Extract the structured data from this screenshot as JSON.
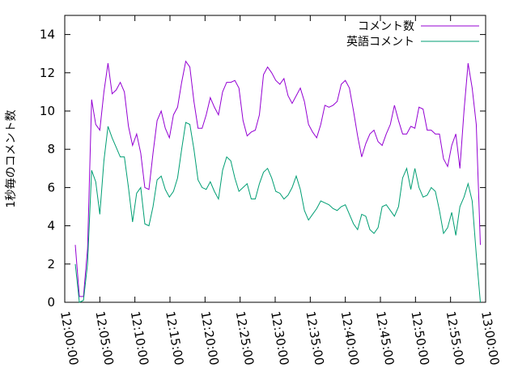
{
  "chart_data": {
    "type": "line",
    "ylabel": "1秒毎のコメント数",
    "x": [
      "12:01:30",
      "12:02:05",
      "12:02:40",
      "12:03:15",
      "12:03:50",
      "12:04:25",
      "12:05:00",
      "12:05:35",
      "12:06:10",
      "12:06:45",
      "12:07:20",
      "12:07:55",
      "12:08:30",
      "12:09:05",
      "12:09:40",
      "12:10:15",
      "12:10:50",
      "12:11:25",
      "12:12:00",
      "12:12:35",
      "12:13:10",
      "12:13:45",
      "12:14:20",
      "12:14:55",
      "12:15:30",
      "12:16:05",
      "12:16:40",
      "12:17:15",
      "12:17:50",
      "12:18:25",
      "12:19:00",
      "12:19:35",
      "12:20:10",
      "12:20:45",
      "12:21:20",
      "12:21:55",
      "12:22:30",
      "12:23:05",
      "12:23:40",
      "12:24:15",
      "12:24:50",
      "12:25:25",
      "12:26:00",
      "12:26:35",
      "12:27:10",
      "12:27:45",
      "12:28:20",
      "12:28:55",
      "12:29:30",
      "12:30:05",
      "12:30:40",
      "12:31:15",
      "12:31:50",
      "12:32:25",
      "12:33:00",
      "12:33:35",
      "12:34:10",
      "12:34:45",
      "12:35:20",
      "12:35:55",
      "12:36:30",
      "12:37:05",
      "12:37:40",
      "12:38:15",
      "12:38:50",
      "12:39:25",
      "12:40:00",
      "12:40:35",
      "12:41:10",
      "12:41:45",
      "12:42:20",
      "12:42:55",
      "12:43:30",
      "12:44:05",
      "12:44:40",
      "12:45:15",
      "12:45:50",
      "12:46:25",
      "12:47:00",
      "12:47:35",
      "12:48:10",
      "12:48:45",
      "12:49:20",
      "12:49:55",
      "12:50:30",
      "12:51:05",
      "12:51:40",
      "12:52:15",
      "12:52:50",
      "12:53:25",
      "12:54:00",
      "12:54:35",
      "12:55:10",
      "12:55:45",
      "12:56:20",
      "12:56:55",
      "12:57:30",
      "12:58:05",
      "12:58:40",
      "12:59:15"
    ],
    "series": [
      {
        "name": "コメント数",
        "color": "#9400d3",
        "values": [
          3.0,
          0.3,
          0.3,
          2.8,
          10.6,
          9.3,
          9.0,
          11.0,
          12.5,
          10.9,
          11.1,
          11.5,
          11.0,
          9.2,
          8.2,
          8.8,
          7.8,
          6.0,
          5.9,
          7.8,
          9.5,
          10.0,
          9.1,
          8.6,
          9.8,
          10.2,
          11.5,
          12.6,
          12.3,
          10.5,
          9.1,
          9.1,
          9.8,
          10.7,
          10.2,
          9.8,
          11.0,
          11.5,
          11.5,
          11.6,
          11.2,
          9.5,
          8.7,
          8.9,
          9.0,
          9.8,
          11.9,
          12.3,
          12.0,
          11.6,
          11.4,
          11.7,
          10.8,
          10.4,
          10.8,
          11.2,
          10.5,
          9.3,
          8.9,
          8.6,
          9.3,
          10.3,
          10.2,
          10.3,
          10.5,
          11.4,
          11.6,
          11.2,
          10.0,
          8.7,
          7.6,
          8.3,
          8.8,
          9.0,
          8.4,
          8.2,
          8.8,
          9.3,
          10.3,
          9.5,
          8.8,
          8.8,
          9.2,
          9.1,
          10.2,
          10.1,
          9.0,
          9.0,
          8.8,
          8.8,
          7.5,
          7.1,
          8.2,
          8.8,
          7.0,
          10.0,
          12.5,
          11.2,
          9.3,
          3.0
        ]
      },
      {
        "name": "英語コメント",
        "color": "#009e73",
        "values": [
          2.0,
          0.0,
          0.1,
          2.0,
          6.9,
          6.3,
          4.6,
          7.4,
          9.2,
          8.6,
          8.1,
          7.6,
          7.6,
          6.0,
          4.2,
          5.7,
          6.0,
          4.1,
          4.0,
          5.0,
          6.4,
          6.6,
          5.9,
          5.5,
          5.8,
          6.5,
          8.0,
          9.4,
          9.3,
          8.0,
          6.4,
          6.0,
          5.9,
          6.3,
          5.8,
          5.4,
          6.9,
          7.6,
          7.4,
          6.5,
          5.8,
          6.0,
          6.2,
          5.4,
          5.4,
          6.2,
          6.8,
          7.0,
          6.5,
          5.8,
          5.7,
          5.4,
          5.6,
          6.0,
          6.6,
          5.9,
          4.8,
          4.3,
          4.6,
          4.9,
          5.3,
          5.2,
          5.1,
          4.9,
          4.8,
          5.0,
          5.1,
          4.6,
          4.1,
          3.8,
          4.6,
          4.5,
          3.8,
          3.6,
          3.9,
          5.0,
          5.1,
          4.8,
          4.5,
          5.0,
          6.5,
          7.0,
          5.9,
          7.0,
          6.0,
          5.5,
          5.6,
          6.0,
          5.8,
          4.8,
          3.6,
          3.9,
          4.7,
          3.5,
          5.0,
          5.5,
          6.2,
          5.3,
          2.5,
          0.0
        ]
      }
    ],
    "xlim": [
      "12:00:00",
      "13:00:00"
    ],
    "xticks": [
      "12:00:00",
      "12:05:00",
      "12:10:00",
      "12:15:00",
      "12:20:00",
      "12:25:00",
      "12:30:00",
      "12:35:00",
      "12:40:00",
      "12:45:00",
      "12:50:00",
      "12:55:00",
      "13:00:00"
    ],
    "ylim": [
      0,
      15
    ],
    "yticks": [
      0,
      2,
      4,
      6,
      8,
      10,
      12,
      14
    ],
    "legend": "top-right"
  }
}
